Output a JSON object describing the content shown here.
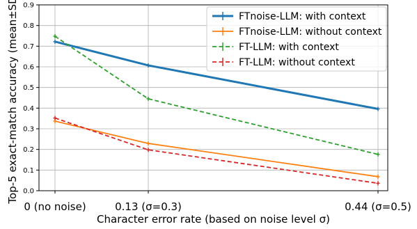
{
  "chart_data": {
    "type": "line",
    "xlabel": "Character error rate (based on noise level σ)",
    "ylabel": "Top-5 exact-match accuracy (mean±SD)",
    "x": [
      0,
      0.13,
      0.44
    ],
    "x_tick_labels": [
      "0 (no noise)",
      "0.13 (σ=0.3)",
      "0.44 (σ=0.5)"
    ],
    "ylim": [
      0,
      0.9
    ],
    "y_ticks": [
      "0.0",
      "0.1",
      "0.2",
      "0.3",
      "0.4",
      "0.5",
      "0.6",
      "0.7",
      "0.8",
      "0.9"
    ],
    "grid": true,
    "legend_position": "top-right",
    "series": [
      {
        "name": "FTnoise-LLM: with context",
        "values": [
          0.722,
          0.607,
          0.396
        ],
        "color": "#1f77b4",
        "style": "solid",
        "weight": "thick"
      },
      {
        "name": "FTnoise-LLM: without context",
        "values": [
          0.337,
          0.229,
          0.068
        ],
        "color": "#ff7f0e",
        "style": "solid",
        "weight": "normal"
      },
      {
        "name": "FT-LLM: with context",
        "values": [
          0.748,
          0.445,
          0.176
        ],
        "color": "#2ca02c",
        "style": "dashed",
        "weight": "normal"
      },
      {
        "name": "FT-LLM: without context",
        "values": [
          0.352,
          0.198,
          0.036
        ],
        "color": "#d62728",
        "style": "dashed",
        "weight": "normal"
      }
    ]
  }
}
